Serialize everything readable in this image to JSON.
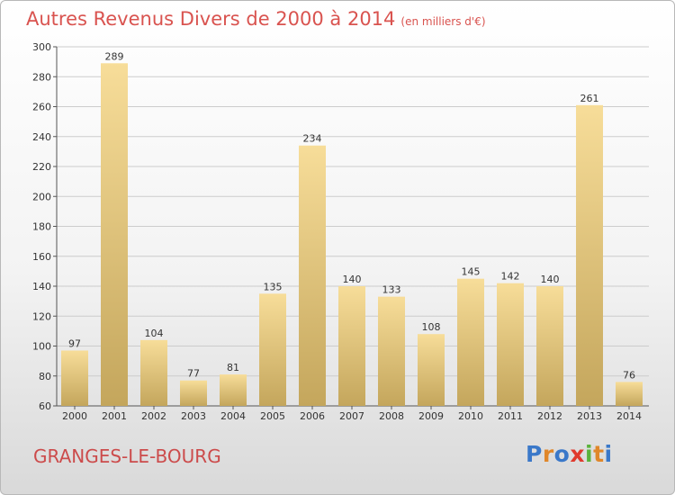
{
  "title": "Autres Revenus Divers de 2000 à 2014",
  "subtitle": "(en milliers d'€)",
  "commune": "GRANGES-LE-BOURG",
  "logo_text": "Proxiti",
  "colors": {
    "title": "#d9534f",
    "bar_light": "#f7dd99",
    "bar_dark": "#c4a65c",
    "grid": "#cccccc",
    "logo": [
      "#3a78c9",
      "#e0872a",
      "#3a78c9",
      "#e03a2d",
      "#5bb33c",
      "#e0872a",
      "#3a78c9"
    ]
  },
  "chart_data": {
    "type": "bar",
    "title": "Autres Revenus Divers de 2000 à 2014",
    "subtitle": "(en milliers d'€)",
    "categories": [
      "2000",
      "2001",
      "2002",
      "2003",
      "2004",
      "2005",
      "2006",
      "2007",
      "2008",
      "2009",
      "2010",
      "2011",
      "2012",
      "2013",
      "2014"
    ],
    "values": [
      97,
      289,
      104,
      77,
      81,
      135,
      234,
      140,
      133,
      108,
      145,
      142,
      140,
      261,
      76
    ],
    "ylim": [
      60,
      300
    ],
    "yticks": [
      60,
      80,
      100,
      120,
      140,
      160,
      180,
      200,
      220,
      240,
      260,
      280,
      300
    ],
    "grid": true,
    "data_labels": true
  }
}
